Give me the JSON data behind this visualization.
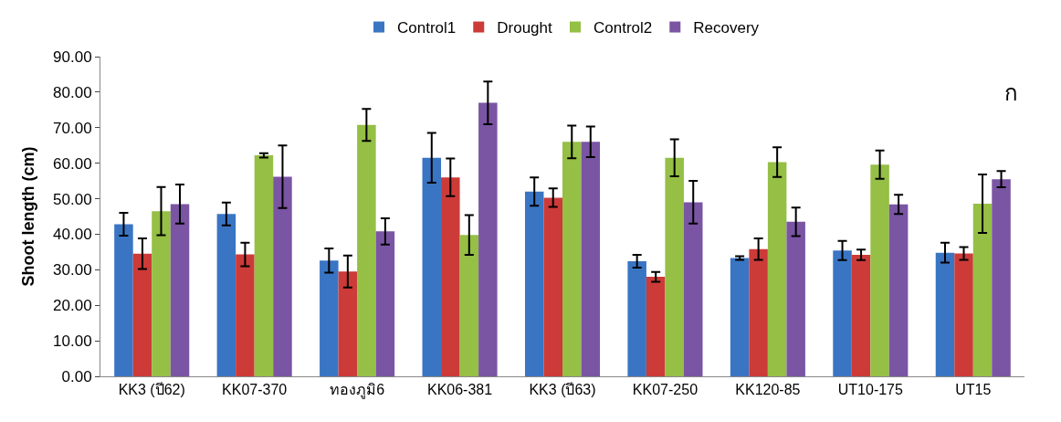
{
  "chart_data": {
    "type": "bar",
    "ylabel": "Shoot length (cm)",
    "annotations": [
      "ก"
    ],
    "categories": [
      "KK3 (ปี62)",
      "KK07-370",
      "ทองภูมิ6",
      "KK06-381",
      "KK3 (ปี63)",
      "KK07-250",
      "KK120-85",
      "UT10-175",
      "UT15"
    ],
    "series": [
      {
        "name": "Control1",
        "color": "#3a75c4",
        "values": [
          42.8,
          45.7,
          32.6,
          61.5,
          52.0,
          32.4,
          33.3,
          35.4,
          34.8
        ],
        "errors": [
          3.2,
          3.2,
          3.4,
          7.0,
          4.0,
          1.8,
          0.5,
          2.7,
          2.8
        ]
      },
      {
        "name": "Drought",
        "color": "#cc3b38",
        "values": [
          34.5,
          34.3,
          29.5,
          56.0,
          50.3,
          28.0,
          35.8,
          34.2,
          34.6
        ],
        "errors": [
          4.3,
          3.3,
          4.5,
          5.3,
          2.6,
          1.4,
          3.0,
          1.5,
          1.8
        ]
      },
      {
        "name": "Control2",
        "color": "#95bf45",
        "values": [
          46.5,
          62.2,
          70.8,
          39.8,
          66.0,
          61.5,
          60.3,
          59.6,
          48.6
        ],
        "errors": [
          6.8,
          0.6,
          4.5,
          5.6,
          4.6,
          5.2,
          4.2,
          4.0,
          8.2
        ]
      },
      {
        "name": "Recovery",
        "color": "#7a55a3",
        "values": [
          48.5,
          56.2,
          40.8,
          77.0,
          66.0,
          49.0,
          43.5,
          48.4,
          55.5
        ],
        "errors": [
          5.5,
          8.8,
          3.7,
          6.0,
          4.3,
          6.0,
          4.0,
          2.7,
          2.3
        ]
      }
    ],
    "ylim": [
      0,
      90
    ],
    "yticks": [
      {
        "value": 0,
        "label": "0.00"
      },
      {
        "value": 10,
        "label": "10.00"
      },
      {
        "value": 20,
        "label": "20.00"
      },
      {
        "value": 30,
        "label": "30.00"
      },
      {
        "value": 40,
        "label": "40.00"
      },
      {
        "value": 50,
        "label": "50.00"
      },
      {
        "value": 60,
        "label": "60.00"
      },
      {
        "value": 70,
        "label": "70.00"
      },
      {
        "value": 80,
        "label": "80.00"
      },
      {
        "value": 90,
        "label": "90.00"
      }
    ],
    "legend": "top"
  }
}
